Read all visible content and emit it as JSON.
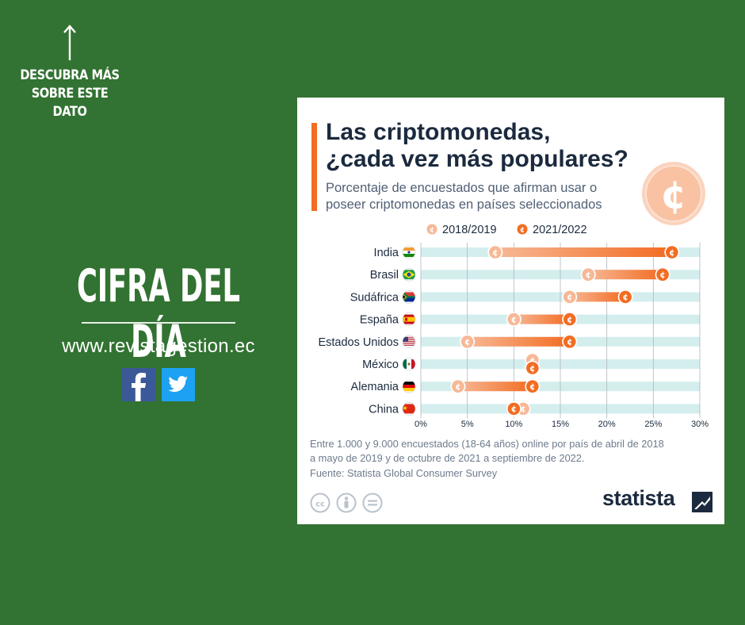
{
  "promo": {
    "discover_lines": [
      "DESCUBRA MÁS",
      "SOBRE ESTE",
      "DATO"
    ],
    "headline": "CIFRA DEL DÍA",
    "website": "www.revistagestion.ec",
    "brand_colors": {
      "background": "#327232",
      "facebook": "#3b5998",
      "twitter": "#1da1f2"
    },
    "icons": [
      "up-arrow-icon",
      "facebook-icon",
      "twitter-icon"
    ]
  },
  "card": {
    "title_lines": [
      "Las criptomonedas,",
      "¿cada vez más populares?"
    ],
    "subtitle_lines": [
      "Porcentaje de encuestados que afirman usar o",
      "poseer criptomonedas en países seleccionados"
    ],
    "notes_lines": [
      "Entre 1.000 y 9.000 encuestados (18-64 años) online por país de abril de 2018",
      "a mayo de 2019 y de octubre de 2021 a septiembre de 2022."
    ],
    "source": "Fuente: Statista Global Consumer Survey",
    "brand": "statista",
    "icons": [
      "crypto-coin-icon",
      "creative-commons-icon",
      "attribution-icon",
      "no-derivatives-icon",
      "statista-logo-icon"
    ]
  },
  "chart_data": {
    "type": "dumbbell",
    "title": "Las criptomonedas, ¿cada vez más populares?",
    "subtitle": "Porcentaje de encuestados que afirman usar o poseer criptomonedas en países seleccionados",
    "categories": [
      "India",
      "Brasil",
      "Sudáfrica",
      "España",
      "Estados Unidos",
      "México",
      "Alemania",
      "China"
    ],
    "series": [
      {
        "name": "2018/2019",
        "color": "#f7b896",
        "values": [
          8,
          18,
          16,
          10,
          5,
          12,
          4,
          11
        ]
      },
      {
        "name": "2021/2022",
        "color": "#f26c22",
        "values": [
          27,
          26,
          22,
          16,
          16,
          12,
          12,
          10
        ]
      }
    ],
    "xlim": [
      0,
      30
    ],
    "xticks": [
      0,
      5,
      10,
      15,
      20,
      25,
      30
    ],
    "xtick_labels": [
      "0%",
      "5%",
      "10%",
      "15%",
      "20%",
      "25%",
      "30%"
    ],
    "legend_position": "top",
    "grid": "vertical",
    "flags": [
      "flag-india-icon",
      "flag-brazil-icon",
      "flag-south-africa-icon",
      "flag-spain-icon",
      "flag-usa-icon",
      "flag-mexico-icon",
      "flag-germany-icon",
      "flag-china-icon"
    ]
  }
}
